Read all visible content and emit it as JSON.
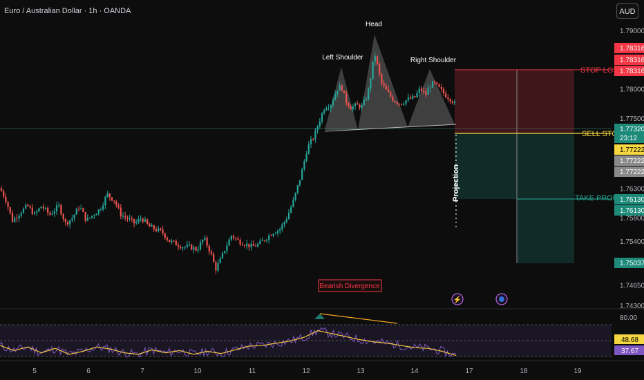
{
  "header": {
    "title": "Euro / Australian Dollar · 1h · OANDA",
    "currency": "AUD"
  },
  "colors": {
    "background": "#0d0d0d",
    "up": "#26a69a",
    "down": "#ef5350",
    "stop_loss": "#f23645",
    "sell_stop": "#f5d742",
    "take_profit": "#22ab94",
    "rsi_line": "#7e57c2",
    "rsi_ma": "#f5c542",
    "trendline": "#f5a623"
  },
  "chart_data": [
    {
      "type": "candlestick",
      "x_ticks": [
        "5",
        "6",
        "7",
        "10",
        "11",
        "12",
        "13",
        "14",
        "17",
        "18",
        "19"
      ],
      "y_ticks": [
        "1.79000",
        "1.78000",
        "1.77500",
        "1.76300",
        "1.75800",
        "1.75400",
        "1.74650",
        "1.74300"
      ],
      "ylim": [
        1.7405,
        1.7957
      ],
      "price_path": [
        [
          0,
          1.763
        ],
        [
          8,
          1.7612
        ],
        [
          18,
          1.7575
        ],
        [
          30,
          1.759
        ],
        [
          40,
          1.76
        ],
        [
          50,
          1.7585
        ],
        [
          60,
          1.76
        ],
        [
          72,
          1.7585
        ],
        [
          85,
          1.76
        ],
        [
          95,
          1.757
        ],
        [
          105,
          1.758
        ],
        [
          115,
          1.76
        ],
        [
          125,
          1.7575
        ],
        [
          135,
          1.7585
        ],
        [
          145,
          1.7595
        ],
        [
          155,
          1.762
        ],
        [
          165,
          1.761
        ],
        [
          175,
          1.7585
        ],
        [
          185,
          1.7578
        ],
        [
          195,
          1.757
        ],
        [
          205,
          1.758
        ],
        [
          215,
          1.7565
        ],
        [
          225,
          1.756
        ],
        [
          235,
          1.7555
        ],
        [
          245,
          1.754
        ],
        [
          255,
          1.7535
        ],
        [
          265,
          1.753
        ],
        [
          275,
          1.753
        ],
        [
          285,
          1.7525
        ],
        [
          295,
          1.7545
        ],
        [
          305,
          1.752
        ],
        [
          312,
          1.7492
        ],
        [
          318,
          1.7505
        ],
        [
          325,
          1.7525
        ],
        [
          335,
          1.755
        ],
        [
          345,
          1.754
        ],
        [
          355,
          1.7535
        ],
        [
          365,
          1.753
        ],
        [
          375,
          1.7535
        ],
        [
          385,
          1.7545
        ],
        [
          395,
          1.7555
        ],
        [
          405,
          1.756
        ],
        [
          415,
          1.758
        ],
        [
          425,
          1.761
        ],
        [
          435,
          1.765
        ],
        [
          445,
          1.77
        ],
        [
          455,
          1.772
        ],
        [
          462,
          1.7745
        ],
        [
          470,
          1.777
        ],
        [
          478,
          1.7772
        ],
        [
          488,
          1.78
        ],
        [
          494,
          1.7805
        ],
        [
          500,
          1.778
        ],
        [
          508,
          1.7768
        ],
        [
          516,
          1.7772
        ],
        [
          524,
          1.777
        ],
        [
          532,
          1.779
        ],
        [
          538,
          1.783
        ],
        [
          542,
          1.7862
        ],
        [
          546,
          1.784
        ],
        [
          552,
          1.781
        ],
        [
          560,
          1.7795
        ],
        [
          570,
          1.778
        ],
        [
          580,
          1.7775
        ],
        [
          590,
          1.7782
        ],
        [
          600,
          1.7785
        ],
        [
          608,
          1.78
        ],
        [
          616,
          1.779
        ],
        [
          622,
          1.7805
        ],
        [
          628,
          1.781
        ],
        [
          636,
          1.78
        ],
        [
          644,
          1.779
        ],
        [
          650,
          1.7785
        ],
        [
          656,
          1.7778
        ],
        [
          661,
          1.777
        ]
      ]
    },
    {
      "type": "line",
      "name": "RSI",
      "levels": [
        "80.00",
        "48.68",
        "37.67"
      ],
      "values": [
        [
          0,
          52
        ],
        [
          20,
          45
        ],
        [
          40,
          50
        ],
        [
          60,
          42
        ],
        [
          80,
          48
        ],
        [
          100,
          40
        ],
        [
          120,
          44
        ],
        [
          140,
          50
        ],
        [
          160,
          47
        ],
        [
          180,
          42
        ],
        [
          200,
          40
        ],
        [
          220,
          46
        ],
        [
          240,
          42
        ],
        [
          260,
          45
        ],
        [
          280,
          40
        ],
        [
          300,
          44
        ],
        [
          320,
          41
        ],
        [
          340,
          46
        ],
        [
          360,
          51
        ],
        [
          380,
          52
        ],
        [
          400,
          55
        ],
        [
          420,
          58
        ],
        [
          440,
          63
        ],
        [
          460,
          72
        ],
        [
          480,
          68
        ],
        [
          500,
          64
        ],
        [
          520,
          60
        ],
        [
          540,
          57
        ],
        [
          560,
          55
        ],
        [
          580,
          52
        ],
        [
          600,
          49
        ],
        [
          620,
          48
        ],
        [
          640,
          44
        ],
        [
          661,
          38
        ]
      ]
    }
  ],
  "annotations": {
    "head": "Head",
    "left_shoulder": "Left Shoulder",
    "right_shoulder": "Right Shoulder",
    "projection": "Projection",
    "bearish_divergence": "Bearish Divergence",
    "stop_loss": "STOP LOSS",
    "sell_stop": "SELL STOP",
    "take_profit": "TAKE PROFIT"
  },
  "price_badges": [
    {
      "value": "1.78316",
      "kind": "red"
    },
    {
      "value": "1.78316",
      "kind": "red"
    },
    {
      "value": "1.78316",
      "kind": "red"
    },
    {
      "value": "1.77320",
      "kind": "teal"
    },
    {
      "value": "23:12",
      "kind": "teal"
    },
    {
      "value": "1.77222",
      "kind": "yellow"
    },
    {
      "value": "1.77222",
      "kind": "grey"
    },
    {
      "value": "1.77222",
      "kind": "grey"
    },
    {
      "value": "1.76130",
      "kind": "teal"
    },
    {
      "value": "1.76130",
      "kind": "teal"
    },
    {
      "value": "1.75037",
      "kind": "teal"
    }
  ],
  "rsi_badges": [
    {
      "value": "48.68",
      "kind": "yellow"
    },
    {
      "value": "37.67",
      "kind": "purple"
    }
  ]
}
